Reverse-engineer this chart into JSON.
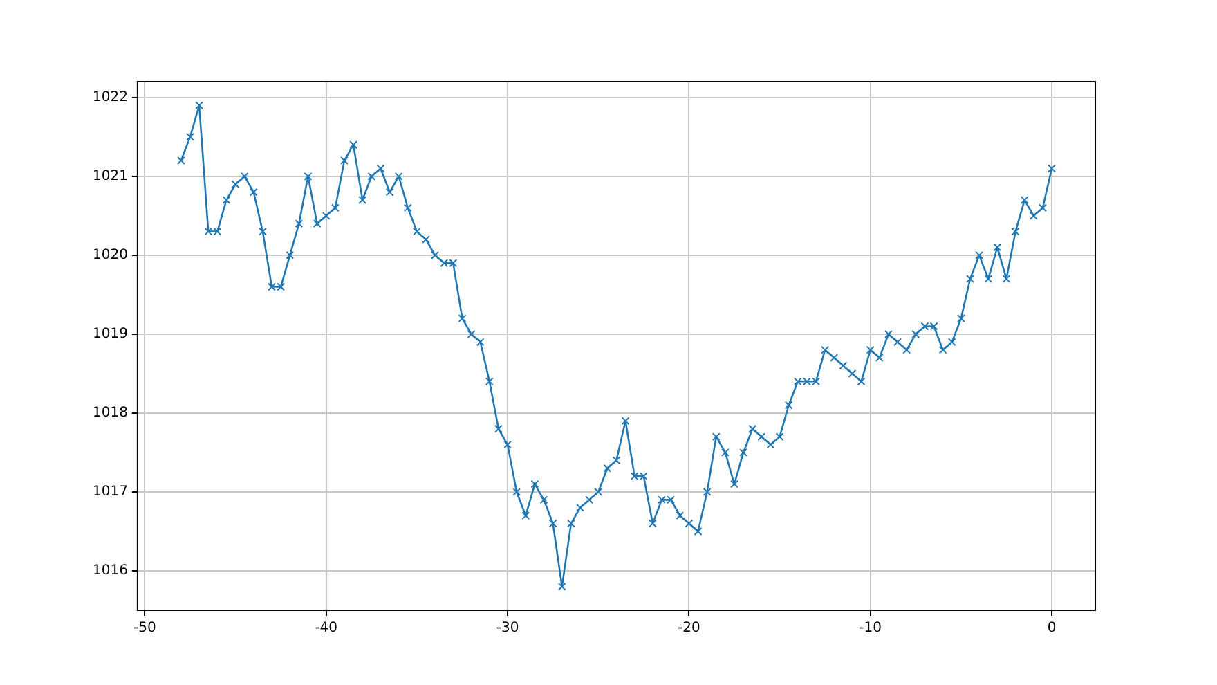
{
  "chart_data": {
    "type": "line",
    "x": [
      -48,
      -47.5,
      -47,
      -46.5,
      -46,
      -45.5,
      -45,
      -44.5,
      -44,
      -43.5,
      -43,
      -42.5,
      -42,
      -41.5,
      -41,
      -40.5,
      -40,
      -39.5,
      -39,
      -38.5,
      -38,
      -37.5,
      -37,
      -36.5,
      -36,
      -35.5,
      -35,
      -34.5,
      -34,
      -33.5,
      -33,
      -32.5,
      -32,
      -31.5,
      -31,
      -30.5,
      -30,
      -29.5,
      -29,
      -28.5,
      -28,
      -27.5,
      -27,
      -26.5,
      -26,
      -25.5,
      -25,
      -24.5,
      -24,
      -23.5,
      -23,
      -22.5,
      -22,
      -21.5,
      -21,
      -20.5,
      -20,
      -19.5,
      -19,
      -18.5,
      -18,
      -17.5,
      -17,
      -16.5,
      -16,
      -15.5,
      -15,
      -14.5,
      -14,
      -13.5,
      -13,
      -12.5,
      -12,
      -11.5,
      -11,
      -10.5,
      -10,
      -9.5,
      -9,
      -8.5,
      -8,
      -7.5,
      -7,
      -6.5,
      -6,
      -5.5,
      -5,
      -4.5,
      -4,
      -3.5,
      -3,
      -2.5,
      -2,
      -1.5,
      -1,
      -0.5,
      0
    ],
    "series": [
      {
        "color": "#1f77b4",
        "values": [
          1021.2,
          1021.5,
          1021.9,
          1020.3,
          1020.3,
          1020.7,
          1020.9,
          1021.0,
          1020.8,
          1020.3,
          1019.6,
          1019.6,
          1020.0,
          1020.4,
          1021.0,
          1020.4,
          1020.5,
          1020.6,
          1021.2,
          1021.4,
          1020.7,
          1021.0,
          1021.1,
          1020.8,
          1021.0,
          1020.6,
          1020.3,
          1020.2,
          1020.0,
          1019.9,
          1019.9,
          1019.2,
          1019.0,
          1018.9,
          1018.4,
          1017.8,
          1017.6,
          1017.0,
          1016.7,
          1017.1,
          1016.9,
          1016.6,
          1015.8,
          1016.6,
          1016.8,
          1016.9,
          1017.0,
          1017.3,
          1017.4,
          1017.9,
          1017.2,
          1017.2,
          1016.6,
          1016.9,
          1016.9,
          1016.7,
          1016.6,
          1016.5,
          1017.0,
          1017.7,
          1017.5,
          1017.1,
          1017.5,
          1017.8,
          1017.7,
          1017.6,
          1017.7,
          1018.1,
          1018.4,
          1018.4,
          1018.4,
          1018.8,
          1018.7,
          1018.6,
          1018.5,
          1018.4,
          1018.8,
          1018.7,
          1019.0,
          1018.9,
          1018.8,
          1019.0,
          1019.1,
          1019.1,
          1018.8,
          1018.9,
          1019.2,
          1019.7,
          1020.0,
          1019.7,
          1020.1,
          1019.7,
          1020.3,
          1020.7,
          1020.5,
          1020.6,
          1021.1
        ]
      }
    ],
    "xlim": [
      -50.4,
      2.4
    ],
    "ylim": [
      1015.5,
      1022.2
    ],
    "xticks": [
      -50,
      -40,
      -30,
      -20,
      -10,
      0
    ],
    "yticks": [
      1016,
      1017,
      1018,
      1019,
      1020,
      1021,
      1022
    ],
    "grid": true,
    "marker": "cross",
    "line_style": "solid"
  }
}
